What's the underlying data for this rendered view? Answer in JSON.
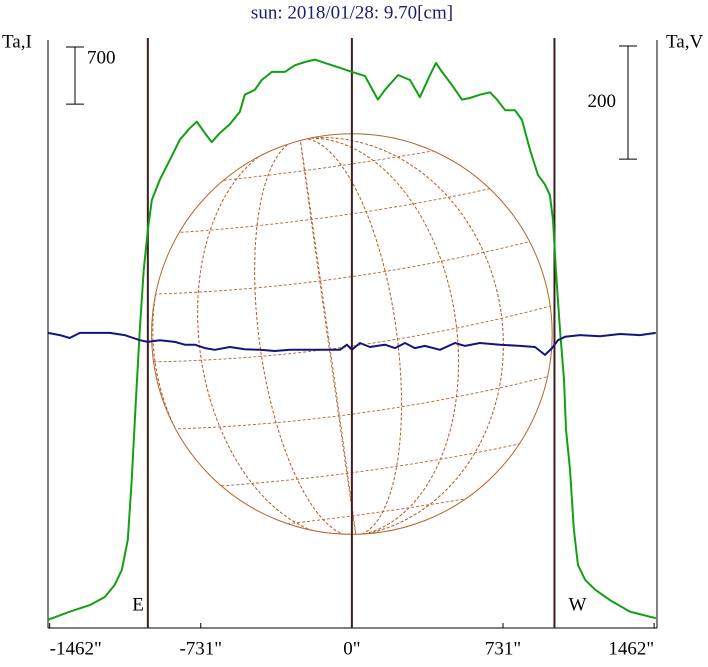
{
  "chart_data": {
    "type": "line",
    "title": "sun: 2018/01/28: 9.70[cm]",
    "ylabel": "Ta,I",
    "y2label": "Ta,V",
    "xlim": [
      -1470,
      1476
    ],
    "xticks": [
      {
        "value": -1462,
        "label": "-1462\""
      },
      {
        "value": -731,
        "label": "-731\""
      },
      {
        "value": 0,
        "label": "0\""
      },
      {
        "value": 731,
        "label": "731\""
      },
      {
        "value": 1462,
        "label": "1462\""
      }
    ],
    "ylim": [
      0,
      7200
    ],
    "y2lim": [
      -520,
      520
    ],
    "vlines": [
      -987,
      0,
      980
    ],
    "limb_labels": [
      "E",
      "W"
    ],
    "scale_bars": [
      {
        "axis": "y",
        "value": 700
      },
      {
        "axis": "y2",
        "value": 200
      }
    ],
    "series": [
      {
        "name": "I",
        "color": "#12a012",
        "x": [
          -1470,
          -1365,
          -1268,
          -1195,
          -1147,
          -1113,
          -1084,
          -1065,
          -1045,
          -1026,
          -1007,
          -987,
          -968,
          -929,
          -881,
          -832,
          -784,
          -750,
          -711,
          -678,
          -639,
          -590,
          -542,
          -518,
          -469,
          -436,
          -387,
          -324,
          -276,
          -227,
          -179,
          -131,
          -58,
          0,
          63,
          126,
          160,
          223,
          281,
          329,
          378,
          407,
          436,
          484,
          532,
          571,
          620,
          668,
          702,
          741,
          789,
          823,
          862,
          900,
          934,
          958,
          973,
          987,
          1007,
          1026,
          1036,
          1055,
          1074,
          1094,
          1128,
          1176,
          1249,
          1346,
          1470
        ],
        "values": [
          100,
          200,
          280,
          380,
          530,
          710,
          1080,
          1810,
          2790,
          3650,
          4380,
          4870,
          5240,
          5490,
          5730,
          5980,
          6120,
          6200,
          6060,
          5950,
          6060,
          6170,
          6320,
          6530,
          6590,
          6710,
          6810,
          6810,
          6890,
          6930,
          6960,
          6920,
          6860,
          6810,
          6760,
          6470,
          6590,
          6770,
          6710,
          6500,
          6770,
          6920,
          6810,
          6650,
          6470,
          6490,
          6530,
          6560,
          6470,
          6340,
          6340,
          6220,
          5850,
          5550,
          5430,
          5300,
          5000,
          4380,
          3650,
          3040,
          2430,
          1940,
          1200,
          770,
          590,
          470,
          340,
          200,
          120
        ]
      },
      {
        "name": "V",
        "color": "#14147e",
        "axis": "y2",
        "x": [
          -1470,
          -1413,
          -1365,
          -1316,
          -1244,
          -1171,
          -1099,
          -1026,
          -987,
          -929,
          -857,
          -808,
          -760,
          -711,
          -663,
          -590,
          -518,
          -445,
          -373,
          -300,
          -227,
          -155,
          -58,
          -24,
          0,
          39,
          87,
          160,
          208,
          257,
          305,
          353,
          426,
          499,
          547,
          620,
          716,
          813,
          886,
          934,
          968,
          997,
          1031,
          1104,
          1200,
          1297,
          1394,
          1470
        ],
        "values": [
          2,
          -2,
          -7,
          2,
          2,
          2,
          -2,
          -11,
          -14,
          -11,
          -14,
          -19,
          -19,
          -25,
          -28,
          -23,
          -27,
          -28,
          -30,
          -28,
          -28,
          -28,
          -28,
          -19,
          -28,
          -16,
          -23,
          -19,
          -25,
          -16,
          -25,
          -21,
          -28,
          -16,
          -21,
          -16,
          -19,
          -21,
          -23,
          -37,
          -25,
          -11,
          -5,
          -2,
          -4,
          0,
          -2,
          2
        ]
      }
    ]
  }
}
